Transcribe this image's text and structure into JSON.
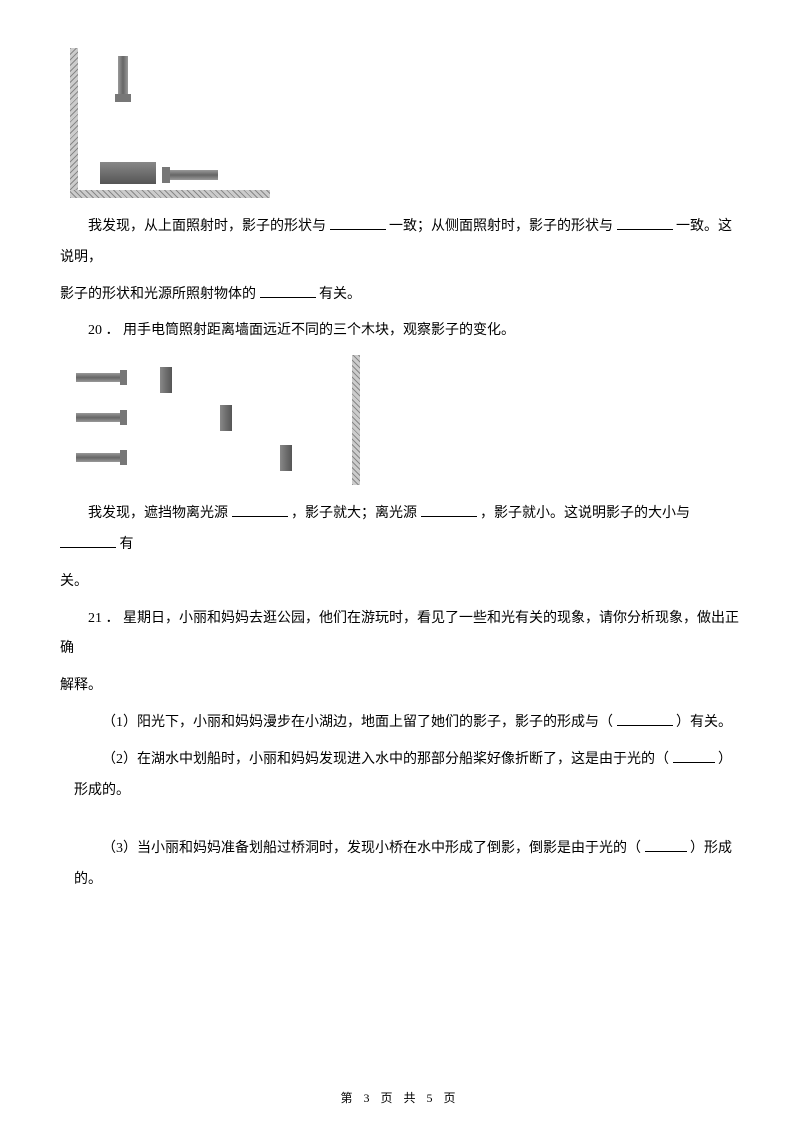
{
  "q19": {
    "finding_prefix": "我发现，从上面照射时，影子的形状与",
    "consistent1": "一致；从侧面照射时，影子的形状与",
    "consistent2": "一致。这说明，",
    "line2_prefix": "影子的形状和光源所照射物体的",
    "line2_suffix": "有关。"
  },
  "q20": {
    "number": "20 ．",
    "stem": "用手电筒照射距离墙面远近不同的三个木块，观察影子的变化。",
    "finding_prefix": "我发现，遮挡物离光源",
    "mid1": "，影子就大；离光源",
    "mid2": "，影子就小。这说明影子的大小与",
    "suffix2": "有",
    "line2": "关。"
  },
  "q21": {
    "number": "21 ．",
    "stem1": "星期日，小丽和妈妈去逛公园，他们在游玩时，看见了一些和光有关的现象，请你分析现象，做出正确",
    "stem2": "解释。",
    "p1_a": "（1）阳光下，小丽和妈妈漫步在小湖边，地面上留了她们的影子，影子的形成与（",
    "p1_b": "）有关。",
    "p2_a": "（2）在湖水中划船时，小丽和妈妈发现进入水中的那部分船桨好像折断了，这是由于光的（",
    "p2_b": "）形成的。",
    "p3_a": "（3）当小丽和妈妈准备划船过桥洞时，发现小桥在水中形成了倒影，倒影是由于光的（",
    "p3_b": "）形成的。"
  },
  "footer": {
    "prefix": "第 ",
    "page": "3",
    "mid": " 页 共 ",
    "total": "5",
    "suffix": " 页"
  }
}
